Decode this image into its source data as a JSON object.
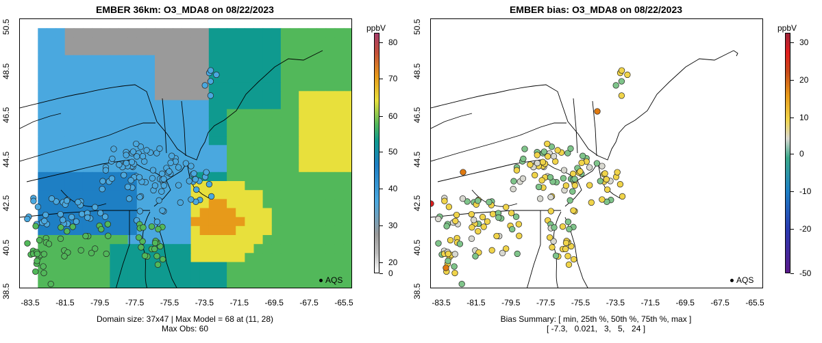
{
  "left": {
    "title": "EMBER 36km: O3_MDA8 on 08/22/2023",
    "y_ticks": [
      "38.5",
      "40.5",
      "42.5",
      "44.5",
      "46.5",
      "48.5",
      "50.5"
    ],
    "x_ticks": [
      "-83.5",
      "-81.5",
      "-79.5",
      "-77.5",
      "-75.5",
      "-73.5",
      "-71.5",
      "-69.5",
      "-67.5",
      "-65.5"
    ],
    "colorbar": {
      "unit": "ppbV",
      "ticks": [
        "0",
        "20",
        "30",
        "40",
        "50",
        "60",
        "70",
        "80"
      ]
    },
    "legend": "AQS",
    "footer_line1": "Domain size: 37x47 | Max Model = 68 at (11, 28)",
    "footer_line2": "Max Obs: 60"
  },
  "right": {
    "title": "EMBER bias: O3_MDA8 on 08/22/2023",
    "y_ticks": [
      "38.5",
      "40.5",
      "42.5",
      "44.5",
      "46.5",
      "48.5",
      "50.5"
    ],
    "x_ticks": [
      "-83.5",
      "-81.5",
      "-79.5",
      "-77.5",
      "-75.5",
      "-73.5",
      "-71.5",
      "-69.5",
      "-67.5",
      "-65.5"
    ],
    "colorbar": {
      "unit": "ppbV",
      "ticks": [
        "-50",
        "-20",
        "-10",
        "0",
        "10",
        "20",
        "30"
      ]
    },
    "legend": "AQS",
    "footer_line1": "Bias Summary: [ min, 25th %, 50th %, 75th %, max ]",
    "footer_line2": "[ -7.3,   0.021,   3,   5,   24 ]"
  },
  "colors": {
    "model_low": "#9a9a9a",
    "model_blue": "#4aa8df",
    "model_dblue": "#1e7fc4",
    "model_teal": "#0f9a8f",
    "model_green": "#52b85a",
    "model_yellow": "#e8e03c",
    "model_orange": "#e79a1a",
    "bias_neutral": "#d8d8d0",
    "bias_pos": "#f0d44a",
    "bias_neg": "#7fc48a",
    "bias_high": "#e07a10",
    "bias_max": "#e01e1e"
  }
}
